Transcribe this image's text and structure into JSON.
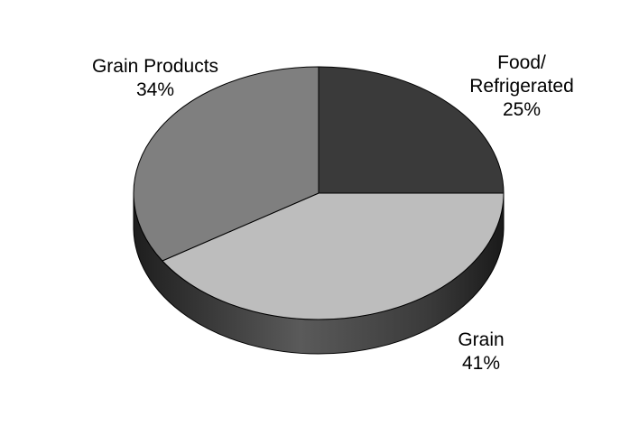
{
  "chart_data": {
    "type": "pie",
    "title": "",
    "legend": "none",
    "slices": [
      {
        "label_lines": [
          "Food/",
          "Refrigerated"
        ],
        "value": 25,
        "value_label": "25%",
        "color": "#3a3a3a",
        "side_color": "#2a2a2a"
      },
      {
        "label_lines": [
          "Grain"
        ],
        "value": 41,
        "value_label": "41%",
        "color": "#bdbdbd",
        "side_color": "#4a4a4a"
      },
      {
        "label_lines": [
          "Grain Products"
        ],
        "value": 34,
        "value_label": "34%",
        "color": "#7f7f7f",
        "side_color": "#3d3d3d"
      }
    ]
  }
}
